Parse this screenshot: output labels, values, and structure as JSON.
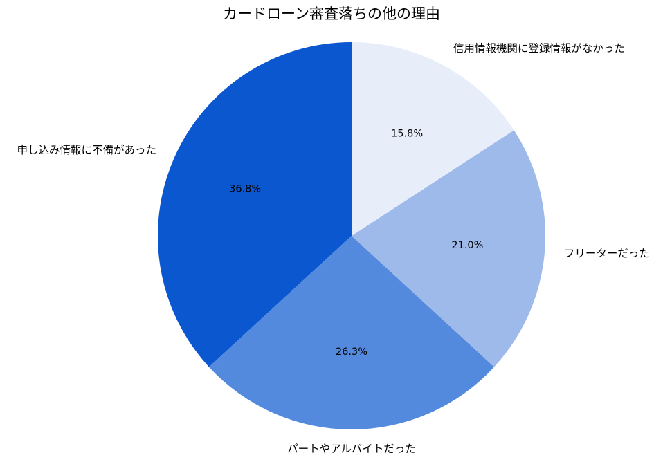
{
  "chart_data": {
    "type": "pie",
    "title": "カードローン審査落ちの他の理由",
    "start_angle_deg": 90,
    "direction": "counterclockwise",
    "slices": [
      {
        "label": "申し込み情報に不備があった",
        "value": 36.8,
        "pct_label": "36.8%",
        "color": "#0b57d0"
      },
      {
        "label": "パートやアルバイトだった",
        "value": 26.3,
        "pct_label": "26.3%",
        "color": "#548ade"
      },
      {
        "label": "フリーターだった",
        "value": 21.0,
        "pct_label": "21.0%",
        "color": "#9ebaeb"
      },
      {
        "label": "信用情報機関に登録情報がなかった",
        "value": 15.8,
        "pct_label": "15.8%",
        "color": "#e7eefa"
      }
    ]
  }
}
